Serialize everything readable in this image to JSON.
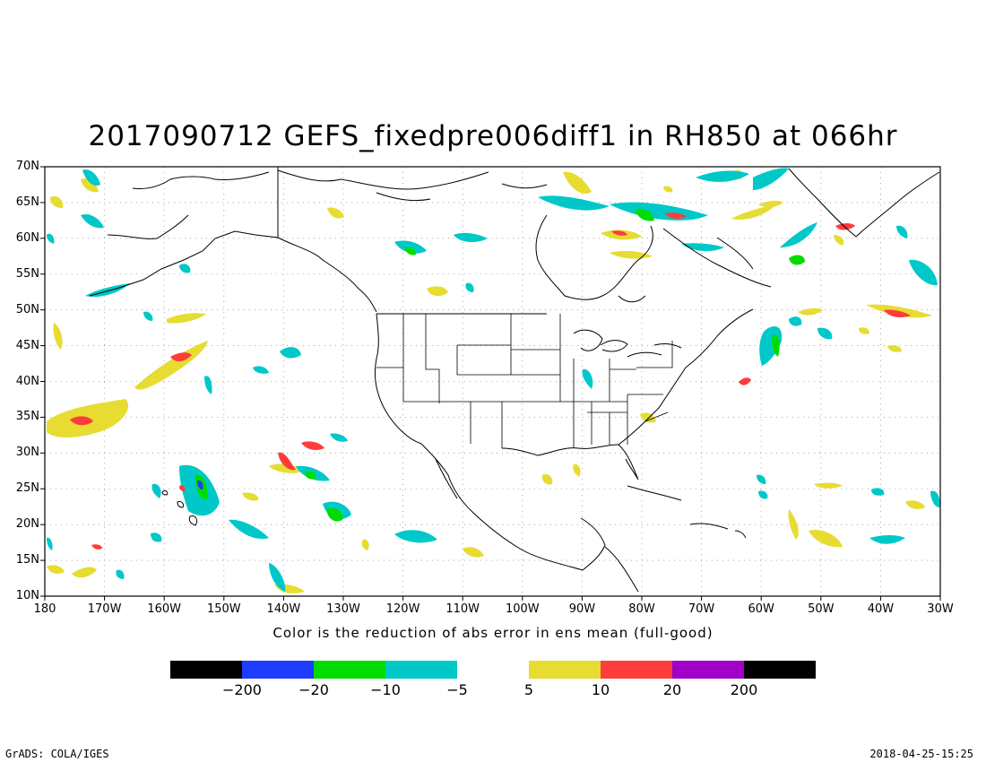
{
  "title": "2017090712 GEFS_fixedpre006diff1 in RH850 at 066hr",
  "caption": "Color is the reduction of abs error in ens mean (full-good)",
  "map": {
    "lat_range": [
      10,
      70
    ],
    "lon_range": [
      -180,
      -30
    ],
    "lat_labels": [
      "70N",
      "65N",
      "60N",
      "55N",
      "50N",
      "45N",
      "40N",
      "35N",
      "30N",
      "25N",
      "20N",
      "15N",
      "10N"
    ],
    "lon_labels": [
      "180",
      "170W",
      "160W",
      "150W",
      "140W",
      "130W",
      "120W",
      "110W",
      "100W",
      "90W",
      "80W",
      "70W",
      "60W",
      "50W",
      "40W",
      "30W"
    ],
    "grid_lines": "dotted"
  },
  "colorbar": {
    "negative": [
      {
        "color": "#000000"
      },
      {
        "color": "#1e3cff"
      },
      {
        "color": "#00dc00"
      },
      {
        "color": "#00c8c8"
      }
    ],
    "positive": [
      {
        "color": "#e6dc32"
      },
      {
        "color": "#ff3c3c"
      },
      {
        "color": "#a000c8"
      },
      {
        "color": "#000000"
      }
    ],
    "labels": [
      "−200",
      "−20",
      "−10",
      "−5",
      "5",
      "10",
      "20",
      "200"
    ]
  },
  "footer": {
    "left": "GrADS: COLA/IGES",
    "right": "2018-04-25-15:25"
  }
}
